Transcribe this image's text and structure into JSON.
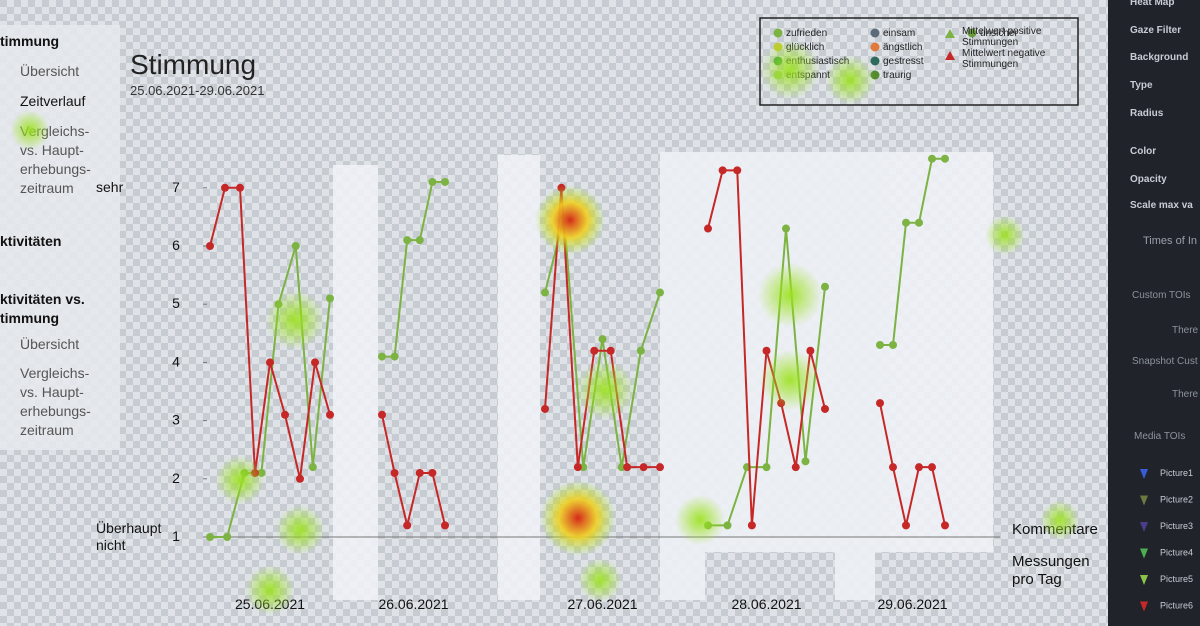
{
  "sidebar": {
    "items": [
      "timmung",
      "Übersicht",
      "Zeitverlauf",
      "Vergleichs-\nvs. Haupt-\nerhebungs-\nzeitraum",
      "ktivitäten",
      "ktivitäten vs.\ntimmung",
      "Übersicht",
      "Vergleichs-\nvs. Haupt-\nerhebungs-\nzeitraum"
    ]
  },
  "chart_data": {
    "type": "line",
    "title": "Stimmung",
    "subtitle": "25.06.2021-29.06.2021",
    "categories": [
      "25.06.2021",
      "26.06.2021",
      "27.06.2021",
      "28.06.2021",
      "29.06.2021"
    ],
    "ylim": [
      0.5,
      7.6
    ],
    "yticks": [
      1,
      2,
      3,
      4,
      5,
      6,
      7
    ],
    "y_end_labels": [
      {
        "value": 7,
        "label": "sehr"
      },
      {
        "value": 1,
        "label": "Überhaupt\nnicht"
      }
    ],
    "right_labels": [
      "Kommentare",
      "Messungen\npro Tag"
    ],
    "legend_items": [
      {
        "name": "zufrieden",
        "color": "#7cb342"
      },
      {
        "name": "glücklich",
        "color": "#c0ca33"
      },
      {
        "name": "enthusiastisch",
        "color": "#43a047"
      },
      {
        "name": "entspannt",
        "color": "#9ccc65"
      },
      {
        "name": "einsam",
        "color": "#5c6b7a"
      },
      {
        "name": "ängstlich",
        "color": "#e07b39"
      },
      {
        "name": "gestresst",
        "color": "#2e6b5e"
      },
      {
        "name": "traurig",
        "color": "#558b2f"
      },
      {
        "name": "unsicher",
        "color": "#6a9a3a"
      }
    ],
    "series": [
      {
        "name": "Mittelwert positive\nStimmungen",
        "color": "#7cb342",
        "values": [
          [
            1,
            1,
            2.1,
            2.1,
            5,
            6,
            2.2,
            5.1
          ],
          [
            4.1,
            4.1,
            6.1,
            6.1,
            7.1,
            7.1
          ],
          [
            5.2,
            6.5,
            2.2,
            4.4,
            2.2,
            4.2,
            5.2
          ],
          [
            1.2,
            1.2,
            2.2,
            2.2,
            6.3,
            2.3,
            5.3
          ],
          [
            4.3,
            4.3,
            6.4,
            6.4,
            7.5,
            7.5
          ]
        ]
      },
      {
        "name": "Mittelwert negative\nStimmungen",
        "color": "#c62828",
        "values": [
          [
            6,
            7,
            7,
            2.1,
            4,
            3.1,
            2,
            4,
            3.1
          ],
          [
            3.1,
            2.1,
            1.2,
            2.1,
            2.1,
            1.2
          ],
          [
            3.2,
            7,
            2.2,
            4.2,
            4.2,
            2.2,
            2.2,
            2.2
          ],
          [
            6.3,
            7.3,
            7.3,
            1.2,
            4.2,
            3.3,
            2.2,
            4.2,
            3.2
          ],
          [
            3.3,
            2.2,
            1.2,
            2.2,
            2.2,
            1.2
          ]
        ]
      }
    ]
  },
  "right_panel": {
    "settings": [
      "Heat Map",
      "Gaze Filter",
      "Background",
      "Type",
      "Radius",
      "Color",
      "Opacity",
      "Scale max va"
    ],
    "section": "Times of In",
    "groups": [
      "Custom TOIs",
      "There a",
      "Snapshot Cust",
      "There a",
      "Media TOIs"
    ],
    "pictures": [
      "Picture1",
      "Picture2",
      "Picture3",
      "Picture4",
      "Picture5",
      "Picture6"
    ]
  }
}
